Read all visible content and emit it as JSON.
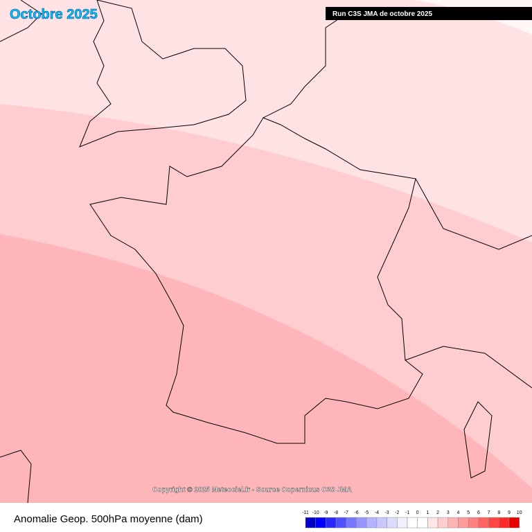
{
  "header": {
    "title": "Octobre 2025",
    "run": "Run C3S JMA de octobre 2025"
  },
  "map": {
    "copyright": "Copyright © 2025 Meteociel.fr - Source Copernicus C3S JMA"
  },
  "footer": {
    "label": "Anomalie Geop. 500hPa moyenne (dam)"
  },
  "legend": {
    "ticks": [
      -11,
      -10,
      -9,
      -8,
      -7,
      -6,
      -5,
      -4,
      -3,
      -2,
      -1,
      0,
      1,
      2,
      3,
      4,
      5,
      6,
      7,
      8,
      9,
      10
    ],
    "colors": [
      "#0000c8",
      "#0000ff",
      "#2828ff",
      "#5050ff",
      "#7878ff",
      "#9696ff",
      "#b4b4ff",
      "#c8c8ff",
      "#dcdcff",
      "#f0f0ff",
      "#ffffff",
      "#ffffff",
      "#ffe6e6",
      "#ffcdcd",
      "#ffb4b4",
      "#ff9b9b",
      "#ff8282",
      "#ff6464",
      "#ff4646",
      "#ff2828",
      "#e60000"
    ]
  }
}
